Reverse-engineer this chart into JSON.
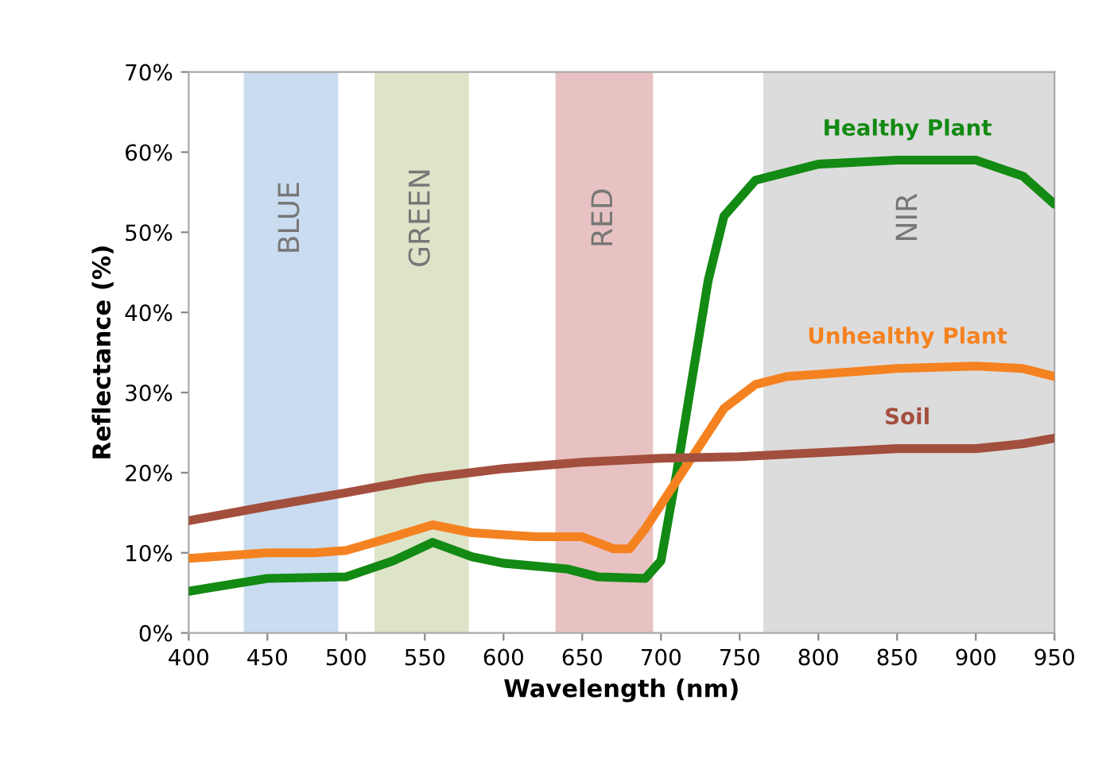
{
  "chart_data": {
    "type": "line",
    "xlabel": "Wavelength (nm)",
    "ylabel": "Reflectance (%)",
    "xlim": [
      400,
      950
    ],
    "xticks": [
      400,
      450,
      500,
      550,
      600,
      650,
      700,
      750,
      800,
      850,
      900,
      950
    ],
    "ylim": [
      0,
      70
    ],
    "yticks": [
      {
        "value": 0,
        "label": "0%"
      },
      {
        "value": 10,
        "label": "10%"
      },
      {
        "value": 20,
        "label": "20%"
      },
      {
        "value": 30,
        "label": "30%"
      },
      {
        "value": 40,
        "label": "40%"
      },
      {
        "value": 50,
        "label": "50%"
      },
      {
        "value": 60,
        "label": "60%"
      },
      {
        "value": 70,
        "label": "70%"
      }
    ],
    "grid": false,
    "line_style": "solid",
    "marker": "none",
    "bands": [
      {
        "axis": "x",
        "from": 435,
        "to": 495,
        "label": "BLUE",
        "color": "#c9dcf0"
      },
      {
        "axis": "x",
        "from": 518,
        "to": 578,
        "label": "GREEN",
        "color": "#dde4c8"
      },
      {
        "axis": "x",
        "from": 633,
        "to": 695,
        "label": "RED",
        "color": "#e8c2c2"
      },
      {
        "axis": "x",
        "from": 765,
        "to": 950,
        "label": "NIR",
        "color": "#dcdcdc"
      }
    ],
    "series": [
      {
        "name": "Healthy Plant",
        "color": "#138a13",
        "x": [
          400,
          450,
          500,
          530,
          555,
          580,
          600,
          640,
          660,
          690,
          700,
          710,
          720,
          730,
          740,
          760,
          800,
          850,
          900,
          930,
          950
        ],
        "values": [
          5.2,
          6.8,
          7,
          9,
          11.3,
          9.5,
          8.7,
          8,
          7,
          6.8,
          9,
          20,
          32,
          44,
          52,
          56.5,
          58.5,
          59,
          59,
          57,
          53.5
        ]
      },
      {
        "name": "Unhealthy Plant",
        "color": "#f58220",
        "x": [
          400,
          450,
          480,
          500,
          530,
          555,
          580,
          620,
          650,
          670,
          680,
          690,
          700,
          720,
          740,
          760,
          780,
          850,
          900,
          930,
          950
        ],
        "values": [
          9.3,
          10,
          10,
          10.3,
          12,
          13.5,
          12.5,
          12,
          12,
          10.5,
          10.5,
          13,
          16,
          22,
          28,
          31,
          32,
          33,
          33.3,
          33,
          32
        ]
      },
      {
        "name": "Soil",
        "color": "#a34f3e",
        "x": [
          400,
          450,
          500,
          550,
          600,
          650,
          700,
          750,
          800,
          850,
          900,
          930,
          950
        ],
        "values": [
          14,
          15.8,
          17.5,
          19.3,
          20.5,
          21.3,
          21.8,
          22,
          22.5,
          23,
          23,
          23.6,
          24.3
        ]
      }
    ]
  }
}
